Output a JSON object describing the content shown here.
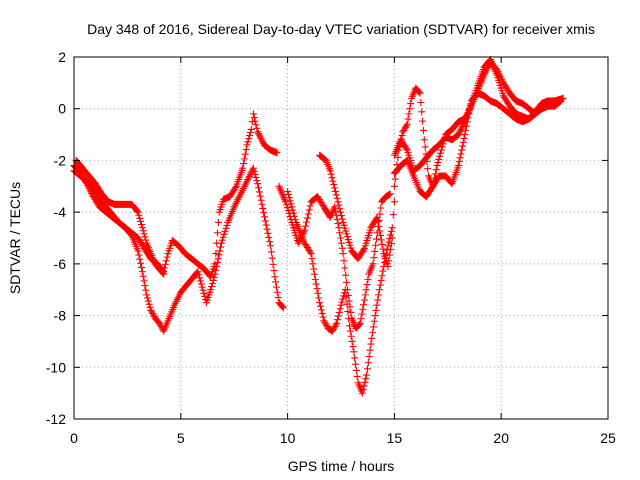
{
  "chart_data": {
    "type": "scatter",
    "title": "Day 348 of 2016, Sidereal Day-to-day VTEC variation (SDTVAR) for receiver xmis",
    "xlabel": "GPS time / hours",
    "ylabel": "SDTVAR / TECUs",
    "xlim": [
      0,
      25
    ],
    "ylim": [
      -12,
      2
    ],
    "xticks": [
      "0",
      "5",
      "10",
      "15",
      "20",
      "25"
    ],
    "yticks": [
      "2",
      "0",
      "-2",
      "-4",
      "-6",
      "-8",
      "-10",
      "-12"
    ],
    "grid": true,
    "marker": "plus",
    "marker_color": "#ff0000",
    "series": [
      {
        "points": [
          [
            0.0,
            -2.4
          ],
          [
            0.3,
            -2.6
          ],
          [
            0.6,
            -2.8
          ],
          [
            0.9,
            -3.1
          ],
          [
            1.2,
            -3.5
          ],
          [
            1.5,
            -3.8
          ],
          [
            1.8,
            -4.1
          ],
          [
            2.1,
            -4.4
          ],
          [
            2.4,
            -4.6
          ],
          [
            2.7,
            -4.8
          ],
          [
            3.0,
            -5.0
          ],
          [
            3.3,
            -5.4
          ],
          [
            3.6,
            -5.8
          ],
          [
            3.9,
            -6.0
          ],
          [
            4.2,
            -6.3
          ],
          [
            4.4,
            -5.6
          ],
          [
            4.6,
            -5.1
          ],
          [
            4.9,
            -5.3
          ],
          [
            5.2,
            -5.6
          ],
          [
            5.5,
            -5.8
          ],
          [
            5.8,
            -6.0
          ],
          [
            6.1,
            -6.2
          ],
          [
            6.4,
            -6.5
          ],
          [
            6.6,
            -6.0
          ],
          [
            6.8,
            -4.0
          ],
          [
            7.0,
            -3.5
          ],
          [
            7.3,
            -3.4
          ],
          [
            7.6,
            -3.0
          ],
          [
            7.9,
            -2.3
          ],
          [
            8.1,
            -1.4
          ],
          [
            8.3,
            -0.8
          ],
          [
            8.4,
            -0.2
          ],
          [
            8.6,
            -0.9
          ],
          [
            8.9,
            -1.4
          ],
          [
            9.2,
            -1.6
          ],
          [
            9.5,
            -1.7
          ]
        ]
      },
      {
        "points": [
          [
            0.0,
            -2.2
          ],
          [
            0.3,
            -2.5
          ],
          [
            0.6,
            -2.9
          ],
          [
            0.9,
            -3.4
          ],
          [
            1.2,
            -3.8
          ],
          [
            1.5,
            -4.0
          ],
          [
            1.8,
            -4.2
          ],
          [
            2.1,
            -4.4
          ],
          [
            2.4,
            -4.6
          ],
          [
            2.7,
            -4.9
          ],
          [
            3.0,
            -5.5
          ],
          [
            3.2,
            -6.3
          ],
          [
            3.4,
            -7.2
          ],
          [
            3.6,
            -7.8
          ],
          [
            3.8,
            -8.1
          ],
          [
            4.0,
            -8.3
          ],
          [
            4.2,
            -8.6
          ],
          [
            4.4,
            -8.2
          ],
          [
            4.7,
            -7.6
          ],
          [
            5.0,
            -7.1
          ],
          [
            5.3,
            -6.8
          ],
          [
            5.6,
            -6.5
          ],
          [
            5.8,
            -6.3
          ],
          [
            6.0,
            -6.9
          ],
          [
            6.2,
            -7.5
          ],
          [
            6.4,
            -7.0
          ],
          [
            6.6,
            -6.4
          ],
          [
            6.9,
            -5.2
          ],
          [
            7.2,
            -4.4
          ],
          [
            7.5,
            -3.8
          ],
          [
            7.8,
            -3.3
          ],
          [
            8.1,
            -2.8
          ],
          [
            8.4,
            -2.3
          ],
          [
            8.6,
            -2.9
          ],
          [
            8.8,
            -3.7
          ],
          [
            9.0,
            -4.5
          ],
          [
            9.2,
            -5.3
          ],
          [
            9.4,
            -6.5
          ],
          [
            9.6,
            -7.5
          ],
          [
            9.8,
            -7.7
          ]
        ]
      },
      {
        "points": [
          [
            0.1,
            -2.0
          ],
          [
            0.4,
            -2.3
          ],
          [
            0.7,
            -2.6
          ],
          [
            1.0,
            -2.9
          ],
          [
            1.3,
            -3.3
          ],
          [
            1.6,
            -3.6
          ],
          [
            1.9,
            -3.7
          ],
          [
            2.3,
            -3.7
          ],
          [
            2.7,
            -3.7
          ],
          [
            3.0,
            -4.0
          ],
          [
            3.2,
            -4.6
          ],
          [
            3.4,
            -5.2
          ],
          [
            3.6,
            -5.6
          ],
          [
            3.8,
            -6.0
          ],
          [
            4.0,
            -6.2
          ],
          [
            4.2,
            -6.4
          ]
        ]
      },
      {
        "points": [
          [
            9.6,
            -3.0
          ],
          [
            9.9,
            -3.6
          ],
          [
            10.2,
            -4.4
          ],
          [
            10.5,
            -5.2
          ],
          [
            10.8,
            -4.7
          ],
          [
            11.1,
            -3.6
          ],
          [
            11.4,
            -3.4
          ],
          [
            11.7,
            -3.8
          ],
          [
            12.0,
            -4.2
          ],
          [
            12.2,
            -3.8
          ],
          [
            12.4,
            -4.6
          ],
          [
            12.6,
            -5.6
          ],
          [
            12.8,
            -7.0
          ],
          [
            13.0,
            -8.1
          ],
          [
            13.2,
            -8.5
          ],
          [
            13.4,
            -8.3
          ],
          [
            13.6,
            -7.4
          ],
          [
            13.8,
            -6.4
          ],
          [
            14.0,
            -6.0
          ],
          [
            14.2,
            -4.8
          ],
          [
            14.4,
            -3.6
          ],
          [
            14.6,
            -3.4
          ],
          [
            14.8,
            -3.3
          ]
        ]
      },
      {
        "points": [
          [
            10.0,
            -3.2
          ],
          [
            10.4,
            -4.4
          ],
          [
            10.8,
            -5.2
          ],
          [
            11.1,
            -5.6
          ],
          [
            11.3,
            -6.6
          ],
          [
            11.5,
            -7.5
          ],
          [
            11.7,
            -8.2
          ],
          [
            11.9,
            -8.5
          ],
          [
            12.1,
            -8.6
          ],
          [
            12.3,
            -8.3
          ],
          [
            12.5,
            -7.6
          ],
          [
            12.7,
            -7.0
          ],
          [
            12.9,
            -8.4
          ],
          [
            13.1,
            -9.4
          ],
          [
            13.3,
            -10.6
          ],
          [
            13.5,
            -11.0
          ],
          [
            13.7,
            -10.3
          ],
          [
            13.9,
            -9.1
          ],
          [
            14.1,
            -8.0
          ],
          [
            14.3,
            -7.0
          ],
          [
            14.5,
            -6.1
          ],
          [
            14.7,
            -5.3
          ],
          [
            14.9,
            -4.6
          ],
          [
            15.0,
            -3.6
          ]
        ]
      },
      {
        "points": [
          [
            11.5,
            -1.8
          ],
          [
            11.8,
            -2.0
          ],
          [
            12.0,
            -2.4
          ],
          [
            12.6,
            -4.4
          ],
          [
            13.0,
            -5.5
          ],
          [
            13.3,
            -5.8
          ],
          [
            13.6,
            -5.4
          ],
          [
            13.9,
            -4.6
          ],
          [
            14.2,
            -4.2
          ],
          [
            14.5,
            -5.6
          ],
          [
            14.7,
            -6.1
          ],
          [
            14.9,
            -5.0
          ]
        ]
      },
      {
        "points": [
          [
            15.0,
            -3.0
          ],
          [
            15.2,
            -1.6
          ],
          [
            15.4,
            -0.9
          ],
          [
            15.6,
            -0.6
          ],
          [
            15.8,
            0.4
          ],
          [
            16.0,
            0.8
          ],
          [
            16.2,
            0.6
          ],
          [
            16.4,
            -1.2
          ],
          [
            16.6,
            -2.6
          ],
          [
            16.8,
            -3.0
          ],
          [
            17.0,
            -2.2
          ],
          [
            17.2,
            -1.6
          ],
          [
            17.4,
            -1.0
          ],
          [
            17.7,
            -0.8
          ],
          [
            18.0,
            -0.5
          ],
          [
            18.3,
            -0.4
          ],
          [
            18.6,
            0.1
          ],
          [
            18.9,
            0.7
          ],
          [
            19.2,
            1.3
          ],
          [
            19.5,
            1.8
          ],
          [
            19.8,
            1.5
          ],
          [
            20.1,
            1.0
          ],
          [
            20.4,
            0.6
          ],
          [
            20.7,
            0.3
          ],
          [
            21.0,
            0.2
          ],
          [
            21.3,
            0.0
          ],
          [
            21.6,
            -0.2
          ],
          [
            21.9,
            0.2
          ],
          [
            22.2,
            0.3
          ],
          [
            22.5,
            0.1
          ],
          [
            22.8,
            0.3
          ]
        ]
      },
      {
        "points": [
          [
            15.0,
            -2.5
          ],
          [
            15.3,
            -2.2
          ],
          [
            15.6,
            -2.0
          ],
          [
            15.9,
            -2.6
          ],
          [
            16.2,
            -3.2
          ],
          [
            16.5,
            -3.4
          ],
          [
            16.8,
            -3.0
          ],
          [
            17.1,
            -2.6
          ],
          [
            17.4,
            -2.6
          ],
          [
            17.7,
            -2.9
          ],
          [
            18.0,
            -2.2
          ],
          [
            18.3,
            -1.0
          ],
          [
            18.6,
            0.3
          ],
          [
            18.9,
            0.6
          ],
          [
            19.2,
            0.5
          ],
          [
            19.5,
            0.3
          ],
          [
            19.8,
            0.2
          ],
          [
            20.1,
            0.0
          ],
          [
            20.4,
            -0.2
          ],
          [
            20.7,
            -0.4
          ],
          [
            21.0,
            -0.5
          ],
          [
            21.3,
            -0.4
          ],
          [
            21.6,
            -0.2
          ],
          [
            21.9,
            0.0
          ],
          [
            22.2,
            0.1
          ],
          [
            22.5,
            0.1
          ]
        ]
      },
      {
        "points": [
          [
            15.0,
            -1.8
          ],
          [
            15.3,
            -1.2
          ],
          [
            15.6,
            -1.6
          ],
          [
            15.9,
            -2.4
          ],
          [
            16.2,
            -2.2
          ],
          [
            16.5,
            -1.9
          ],
          [
            16.8,
            -1.6
          ],
          [
            17.1,
            -1.4
          ],
          [
            17.4,
            -1.1
          ],
          [
            17.7,
            -1.2
          ],
          [
            18.0,
            -1.0
          ],
          [
            18.3,
            -0.5
          ],
          [
            18.6,
            0.2
          ],
          [
            18.9,
            0.9
          ],
          [
            19.2,
            1.6
          ],
          [
            19.5,
            1.9
          ],
          [
            19.8,
            1.3
          ],
          [
            20.1,
            0.5
          ],
          [
            20.4,
            0.1
          ],
          [
            20.7,
            -0.2
          ],
          [
            21.0,
            -0.3
          ],
          [
            21.3,
            -0.4
          ],
          [
            21.6,
            -0.1
          ],
          [
            21.9,
            0.2
          ],
          [
            22.2,
            0.3
          ],
          [
            22.5,
            0.3
          ],
          [
            22.9,
            0.4
          ]
        ]
      }
    ]
  }
}
